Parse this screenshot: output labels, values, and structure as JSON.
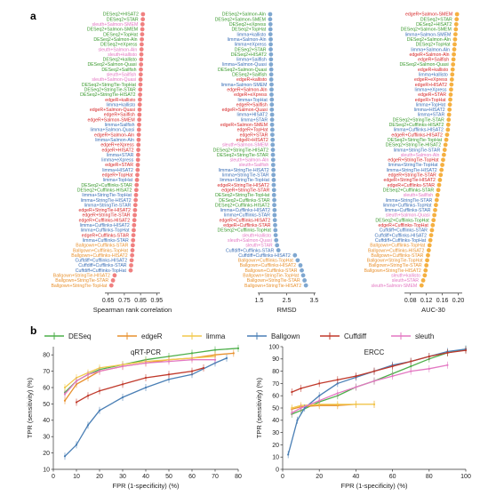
{
  "panel_labels": {
    "a": "a",
    "b": "b"
  },
  "colors": {
    "DESeq": "#4daf4a",
    "edgeR": "#e8912e",
    "limma": "#f2c94c",
    "Ballgown": "#4a7fb5",
    "Cuffdiff": "#c0392b",
    "sleuth": "#e377c2",
    "red_label": "#d62728",
    "blue_label": "#3b6fb6",
    "green_label": "#3a9a2e",
    "orange_label": "#e8912e",
    "pink_label": "#e377c2",
    "dot_a1": "#f08080",
    "dot_a2": "#7fa7d0",
    "dot_a3": "#f5b041"
  },
  "legend": [
    "DESeq",
    "edgeR",
    "limma",
    "Ballgown",
    "Cuffdiff",
    "sleuth"
  ],
  "chart_data": [
    {
      "type": "scatter",
      "xlabel": "Spearman rank correlation",
      "xlim": [
        0.63,
        0.97
      ],
      "xticks": [
        0.65,
        0.75,
        0.85,
        0.95
      ],
      "tick_labels": [
        "0.65",
        "0.75",
        "0.85",
        "0.95"
      ],
      "labels": [
        "DESeq2+HISAT2",
        "DESeq2+STAR",
        "sleuth+Salmon-SMEM",
        "DESeq2+Salmon-SMEM",
        "DESeq2+TopHat",
        "DESeq2+Salmon-Aln",
        "DESeq2+eXpress",
        "sleuth+Salmon-Aln",
        "sleuth+kallisto",
        "DESeq2+kallisto",
        "DESeq2+Salmon-Quasi",
        "DESeq2+Sailfish",
        "sleuth+Sailfish",
        "sleuth+Salmon-Quasi",
        "DESeq2+StringTie-TopHat",
        "DESeq2+StringTie-STAR",
        "DESeq2+StringTie-HISAT2",
        "edgeR+kallisto",
        "limma+kallisto",
        "edgeR+Salmon-Quasi",
        "edgeR+Sailfish",
        "edgeR+Salmon-SMEM",
        "limma+Sailfish",
        "limma+Salmon-Quasi",
        "edgeR+Salmon-Aln",
        "limma+Salmon-Aln",
        "edgeR+eXpress",
        "edgeR+HISAT2",
        "limma+STAR",
        "limma+eXpress",
        "edgeR+STAR",
        "limma+HISAT2",
        "edgeR+TopHat",
        "limma+TopHat",
        "DESeq2+Cufflinks-STAR",
        "DESeq2+Cufflinks-HISAT2",
        "limma+StringTie-TopHat",
        "limma+StringTie-HISAT2",
        "limma+StringTie-STAR",
        "edgeR+StringTie-HISAT2",
        "edgeR+StringTie-STAR",
        "edgeR+Cufflinks-HISAT2",
        "limma+Cufflinks-HISAT2",
        "limma+Cufflinks-TopHat",
        "edgeR+Cufflinks-STAR",
        "limma+Cufflinks-STAR",
        "Ballgown+Cufflinks-STAR",
        "Ballgown+Cufflinks-TopHat",
        "Ballgown+Cufflinks-HISAT2",
        "Cuffdiff+Cufflinks-HISAT2",
        "Cuffdiff+Cufflinks-STAR",
        "Cuffdiff+Cufflinks-TopHat",
        "Ballgown+StringTie-HISAT2",
        "Ballgown+StringTie-STAR",
        "Ballgown+StringTie-TopHat"
      ],
      "label_colors": [
        "green",
        "green",
        "pink",
        "green",
        "green",
        "green",
        "green",
        "pink",
        "pink",
        "green",
        "green",
        "green",
        "pink",
        "pink",
        "green",
        "green",
        "green",
        "red",
        "blue",
        "red",
        "red",
        "red",
        "blue",
        "blue",
        "red",
        "blue",
        "red",
        "red",
        "blue",
        "blue",
        "red",
        "blue",
        "red",
        "blue",
        "green",
        "green",
        "blue",
        "blue",
        "blue",
        "red",
        "red",
        "red",
        "blue",
        "blue",
        "red",
        "blue",
        "orange",
        "orange",
        "orange",
        "blue",
        "blue",
        "blue",
        "orange",
        "orange",
        "orange"
      ],
      "values": [
        0.865,
        0.864,
        0.862,
        0.861,
        0.86,
        0.858,
        0.857,
        0.856,
        0.855,
        0.854,
        0.853,
        0.852,
        0.851,
        0.85,
        0.849,
        0.848,
        0.847,
        0.846,
        0.845,
        0.844,
        0.843,
        0.842,
        0.841,
        0.84,
        0.839,
        0.838,
        0.837,
        0.836,
        0.835,
        0.834,
        0.833,
        0.832,
        0.83,
        0.828,
        0.826,
        0.824,
        0.822,
        0.82,
        0.818,
        0.816,
        0.814,
        0.812,
        0.81,
        0.808,
        0.806,
        0.804,
        0.802,
        0.8,
        0.798,
        0.795,
        0.792,
        0.789,
        0.69,
        0.68,
        0.67
      ]
    },
    {
      "type": "scatter",
      "xlabel": "RMSD",
      "xlim": [
        1.45,
        3.55
      ],
      "xticks": [
        1.5,
        2.5,
        3.5
      ],
      "tick_labels": [
        "1.5",
        "2.5",
        "3.5"
      ],
      "labels": [
        "DESeq2+Salmon-Aln",
        "DESeq2+Salmon-SMEM",
        "DESeq2+eXpress",
        "DESeq2+TopHat",
        "limma+kallisto",
        "limma+Salmon-Aln",
        "limma+eXpress",
        "DESeq2+STAR",
        "DESeq2+HISAT2",
        "limma+Sailfish",
        "limma+Salmon-Quasi",
        "DESeq2+Salmon-Quasi",
        "DESeq2+Sailfish",
        "edgeR+kallisto",
        "limma+Salmon-SMEM",
        "edgeR+Salmon-Aln",
        "edgeR+eXpress",
        "limma+TopHat",
        "edgeR+Sailfish",
        "edgeR+Salmon-Quasi",
        "limma+HISAT2",
        "limma+STAR",
        "edgeR+Salmon-SMEM",
        "edgeR+TopHat",
        "edgeR+STAR",
        "edgeR+HISAT2",
        "sleuth+Salmon-SMEM",
        "DESeq2+StringTie-HISAT2",
        "DESeq2+StringTie-STAR",
        "sleuth+Salmon-Aln",
        "sleuth+Sailfish",
        "limma+StringTie-HISAT2",
        "limma+StringTie-STAR",
        "limma+StringTie-TopHat",
        "edgeR+StringTie-HISAT2",
        "edgeR+StringTie-STAR",
        "DESeq2+StringTie-TopHat",
        "DESeq2+Cufflinks-STAR",
        "DESeq2+Cufflinks-HISAT2",
        "limma+Cufflinks-HISAT2",
        "limma+Cufflinks-STAR",
        "edgeR+Cufflinks-HISAT2",
        "edgeR+Cufflinks-STAR",
        "DESeq2+Cufflinks-TopHat",
        "sleuth+kallisto",
        "sleuth+Salmon-Quasi",
        "sleuth+STAR",
        "Cuffdiff+Cufflinks-STAR",
        "Cuffdiff+Cufflinks-HISAT2",
        "Ballgown+Cufflinks-TopHat",
        "Ballgown+Cufflinks-HISAT2",
        "Ballgown+Cufflinks-STAR",
        "Ballgown+StringTie-TopHat",
        "Ballgown+StringTie-STAR",
        "Ballgown+StringTie-HISAT2"
      ],
      "label_colors": [
        "green",
        "green",
        "green",
        "green",
        "blue",
        "blue",
        "blue",
        "green",
        "green",
        "blue",
        "blue",
        "green",
        "green",
        "red",
        "blue",
        "red",
        "red",
        "blue",
        "red",
        "red",
        "blue",
        "blue",
        "red",
        "red",
        "red",
        "red",
        "pink",
        "green",
        "green",
        "pink",
        "pink",
        "blue",
        "blue",
        "blue",
        "red",
        "red",
        "green",
        "green",
        "green",
        "blue",
        "blue",
        "red",
        "red",
        "green",
        "pink",
        "pink",
        "pink",
        "blue",
        "blue",
        "orange",
        "orange",
        "orange",
        "orange",
        "orange",
        "orange"
      ],
      "values": [
        1.9,
        1.9,
        1.91,
        1.91,
        1.91,
        1.92,
        1.92,
        1.92,
        1.93,
        1.93,
        1.93,
        1.94,
        1.94,
        1.94,
        1.95,
        1.95,
        1.95,
        1.96,
        1.96,
        1.96,
        1.97,
        1.97,
        1.97,
        1.98,
        1.98,
        1.99,
        1.99,
        2.0,
        2.0,
        2.01,
        2.01,
        2.02,
        2.02,
        2.03,
        2.03,
        2.04,
        2.04,
        2.05,
        2.05,
        2.06,
        2.06,
        2.07,
        2.08,
        2.09,
        2.1,
        2.12,
        2.15,
        2.2,
        2.8,
        2.9,
        3.0,
        3.05,
        3.1,
        3.15,
        3.2
      ]
    },
    {
      "type": "scatter",
      "xlabel": "AUC-30",
      "xlim": [
        0.065,
        0.21
      ],
      "xticks": [
        0.08,
        0.12,
        0.16,
        0.2
      ],
      "tick_labels": [
        "0.08",
        "0.12",
        "0.16",
        "0.20"
      ],
      "labels": [
        "edgeR+Salmon-SMEM",
        "DESeq2+STAR",
        "DESeq2+HISAT2",
        "DESeq2+Salmon-SMEM",
        "limma+Salmon-SMEM",
        "DESeq2+Salmon-Aln",
        "DESeq2+TopHat",
        "limma+Salmon-Aln",
        "edgeR+Salmon-Aln",
        "edgeR+Sailfish",
        "DESeq2+Salmon-Quasi",
        "edgeR+kallisto",
        "limma+kallisto",
        "edgeR+eXpress",
        "edgeR+HISAT2",
        "limma+eXpress",
        "edgeR+STAR",
        "edgeR+TopHat",
        "limma+TopHat",
        "limma+HISAT2",
        "limma+STAR",
        "DESeq2+StringTie-STAR",
        "DESeq2+Cufflinks-HISAT2",
        "limma+Cufflinks-HISAT2",
        "edgeR+Cufflinks-HISAT2",
        "DESeq2+StringTie-TopHat",
        "DESeq2+StringTie-HISAT2",
        "limma+StringTie-STAR",
        "sleuth+Salmon-Aln",
        "edgeR+StringTie-TopHat",
        "limma+StringTie-TopHat",
        "limma+StringTie-HISAT2",
        "edgeR+StringTie-STAR",
        "edgeR+StringTie-HISAT2",
        "edgeR+Cufflinks-STAR",
        "DESeq2+Cufflinks-STAR",
        "sleuth+Sailfish",
        "limma+StringTie-STAR",
        "limma+Cufflinks-TopHat",
        "limma+Cufflinks-STAR",
        "sleuth+Salmon-Quasi",
        "DESeq2+Cufflinks-TopHat",
        "edgeR+Cufflinks-TopHat",
        "Cuffdiff+Cufflinks-STAR",
        "Cuffdiff+Cufflinks-HISAT2",
        "Cuffdiff+Cufflinks-TopHat",
        "Ballgown+Cufflinks-TopHat",
        "Ballgown+Cufflinks-HISAT2",
        "Ballgown+Cufflinks-STAR",
        "Ballgown+StringTie-TopHat",
        "Ballgown+StringTie-STAR",
        "Ballgown+StringTie-HISAT2",
        "sleuth+kallisto",
        "sleuth+STAR",
        "sleuth+Salmon-SMEM"
      ],
      "label_colors": [
        "red",
        "green",
        "green",
        "green",
        "blue",
        "green",
        "green",
        "blue",
        "red",
        "red",
        "green",
        "red",
        "blue",
        "red",
        "red",
        "blue",
        "red",
        "red",
        "blue",
        "blue",
        "blue",
        "green",
        "green",
        "blue",
        "red",
        "green",
        "green",
        "blue",
        "pink",
        "red",
        "blue",
        "blue",
        "red",
        "red",
        "red",
        "green",
        "pink",
        "blue",
        "blue",
        "blue",
        "pink",
        "green",
        "red",
        "blue",
        "blue",
        "blue",
        "orange",
        "orange",
        "orange",
        "orange",
        "orange",
        "orange",
        "pink",
        "pink",
        "pink"
      ],
      "values": [
        0.197,
        0.196,
        0.195,
        0.194,
        0.193,
        0.192,
        0.191,
        0.19,
        0.189,
        0.188,
        0.187,
        0.186,
        0.185,
        0.184,
        0.183,
        0.182,
        0.181,
        0.18,
        0.179,
        0.178,
        0.177,
        0.176,
        0.175,
        0.174,
        0.172,
        0.17,
        0.168,
        0.166,
        0.164,
        0.162,
        0.16,
        0.158,
        0.156,
        0.154,
        0.152,
        0.15,
        0.148,
        0.146,
        0.144,
        0.142,
        0.14,
        0.138,
        0.136,
        0.134,
        0.132,
        0.13,
        0.128,
        0.126,
        0.124,
        0.122,
        0.12,
        0.118,
        0.116,
        0.112,
        0.108
      ]
    },
    {
      "type": "line",
      "title": "qRT-PCR",
      "xlabel": "FPR (1-specificity) (%)",
      "ylabel": "TPR (sensitivity) (%)",
      "xlim": [
        0,
        80
      ],
      "ylim": [
        10,
        85
      ],
      "xticks": [
        0,
        10,
        20,
        30,
        40,
        50,
        60,
        70,
        80
      ],
      "yticks": [
        10,
        20,
        30,
        40,
        50,
        60,
        70,
        80
      ],
      "series": [
        {
          "name": "DESeq",
          "x": [
            5,
            10,
            15,
            20,
            30,
            40,
            50,
            60,
            70,
            80
          ],
          "y": [
            57,
            64,
            68,
            71,
            74,
            77,
            79,
            81,
            83,
            84
          ]
        },
        {
          "name": "edgeR",
          "x": [
            5,
            10,
            15,
            20,
            30,
            40,
            50,
            60,
            70,
            78
          ],
          "y": [
            52,
            62,
            66,
            70,
            73,
            75,
            77,
            78,
            80,
            81
          ]
        },
        {
          "name": "limma",
          "x": [
            5,
            10,
            15,
            20,
            30,
            40,
            50,
            60,
            70
          ],
          "y": [
            60,
            66,
            69,
            72,
            74,
            76,
            77,
            78,
            79
          ]
        },
        {
          "name": "Ballgown",
          "x": [
            5,
            10,
            15,
            20,
            30,
            40,
            50,
            60,
            70,
            75
          ],
          "y": [
            18,
            25,
            37,
            46,
            54,
            60,
            65,
            68,
            75,
            78
          ]
        },
        {
          "name": "Cuffdiff",
          "x": [
            10,
            15,
            20,
            30,
            40,
            50,
            60,
            65
          ],
          "y": [
            51,
            55,
            58,
            62,
            66,
            68,
            70,
            72
          ]
        },
        {
          "name": "sleuth",
          "x": [
            5,
            10,
            15,
            20,
            30,
            40,
            50,
            60,
            70
          ],
          "y": [
            56,
            64,
            68,
            70,
            73,
            75,
            76,
            77,
            77
          ]
        }
      ]
    },
    {
      "type": "line",
      "title": "ERCC",
      "xlabel": "FPR (1-specificity) (%)",
      "ylabel": "TPR (sensitivity) (%)",
      "xlim": [
        0,
        100
      ],
      "ylim": [
        0,
        100
      ],
      "xticks": [
        0,
        20,
        40,
        60,
        80,
        100
      ],
      "yticks": [
        0,
        10,
        20,
        30,
        40,
        50,
        60,
        70,
        80,
        90,
        100
      ],
      "series": [
        {
          "name": "DESeq",
          "x": [
            5,
            10,
            20,
            30,
            40,
            50,
            60,
            70,
            80,
            90,
            100
          ],
          "y": [
            45,
            48,
            55,
            60,
            67,
            72,
            78,
            84,
            90,
            95,
            98
          ]
        },
        {
          "name": "edgeR",
          "x": [
            5,
            10,
            20,
            30,
            40,
            50
          ],
          "y": [
            49,
            51,
            52,
            52,
            53,
            53
          ]
        },
        {
          "name": "limma",
          "x": [
            5,
            10,
            20,
            30,
            40,
            50
          ],
          "y": [
            50,
            52,
            53,
            53,
            53,
            53
          ]
        },
        {
          "name": "Ballgown",
          "x": [
            3,
            8,
            12,
            20,
            30,
            40,
            50,
            60,
            70,
            80,
            90,
            100
          ],
          "y": [
            12,
            40,
            50,
            60,
            70,
            75,
            80,
            85,
            88,
            92,
            96,
            98
          ]
        },
        {
          "name": "Cuffdiff",
          "x": [
            5,
            10,
            20,
            30,
            40,
            50,
            60,
            70,
            80,
            90,
            100
          ],
          "y": [
            63,
            66,
            70,
            73,
            76,
            80,
            84,
            88,
            92,
            95,
            97
          ]
        },
        {
          "name": "sleuth",
          "x": [
            5,
            10,
            20,
            30,
            40,
            50,
            60,
            70,
            80,
            90
          ],
          "y": [
            46,
            50,
            56,
            62,
            67,
            72,
            76,
            80,
            82,
            85
          ]
        }
      ]
    }
  ]
}
